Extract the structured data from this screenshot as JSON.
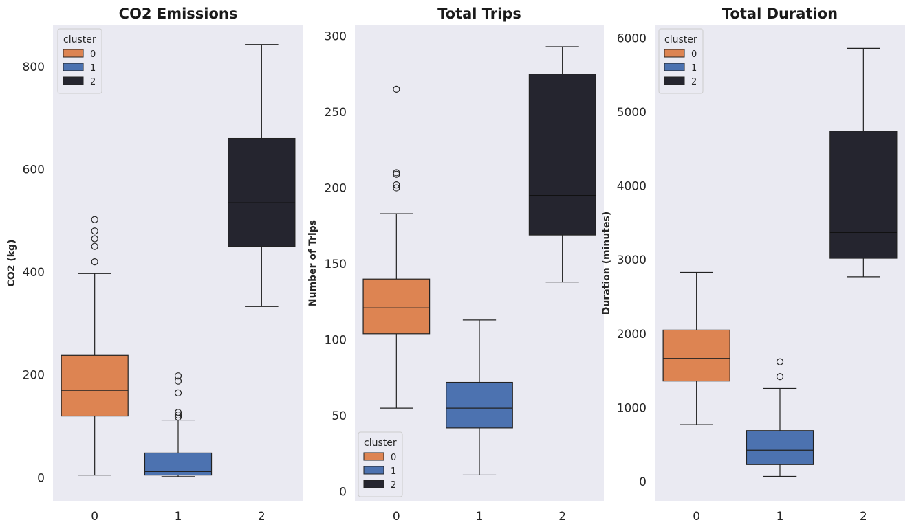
{
  "colors": {
    "background": "#eaeaf2",
    "cluster_0": "#dd8452",
    "cluster_1": "#4c72b0",
    "cluster_2": "#25252f",
    "median_on_dark": "#111111",
    "outline": "#222222"
  },
  "chart_data": [
    {
      "type": "box",
      "title": "CO2 Emissions",
      "xlabel": "",
      "ylabel": "CO2 (kg)",
      "ylim": [
        -45,
        880
      ],
      "yticks": [
        0,
        200,
        400,
        600,
        800
      ],
      "categories": [
        "0",
        "1",
        "2"
      ],
      "grid": false,
      "legend": {
        "title": "cluster",
        "placement": "top-left",
        "entries": [
          "0",
          "1",
          "2"
        ]
      },
      "boxes": [
        {
          "cluster": "0",
          "whisker_low": 5,
          "q1": 120,
          "median": 170,
          "q3": 238,
          "whisker_high": 397,
          "outliers": [
            420,
            450,
            465,
            480,
            502
          ]
        },
        {
          "cluster": "1",
          "whisker_low": 2,
          "q1": 5,
          "median": 12,
          "q3": 48,
          "whisker_high": 112,
          "outliers": [
            118,
            122,
            127,
            165,
            188,
            198
          ]
        },
        {
          "cluster": "2",
          "whisker_low": 333,
          "q1": 450,
          "median": 535,
          "q3": 660,
          "whisker_high": 843,
          "outliers": []
        }
      ]
    },
    {
      "type": "box",
      "title": "Total Trips",
      "xlabel": "",
      "ylabel": "Number of Trips",
      "ylim": [
        -6,
        307
      ],
      "yticks": [
        0,
        50,
        100,
        150,
        200,
        250,
        300
      ],
      "categories": [
        "0",
        "1",
        "2"
      ],
      "grid": false,
      "legend": {
        "title": "cluster",
        "placement": "bottom-left",
        "entries": [
          "0",
          "1",
          "2"
        ]
      },
      "boxes": [
        {
          "cluster": "0",
          "whisker_low": 55,
          "q1": 104,
          "median": 121,
          "q3": 140,
          "whisker_high": 183,
          "outliers": [
            200,
            202,
            209,
            210,
            265
          ]
        },
        {
          "cluster": "1",
          "whisker_low": 11,
          "q1": 42,
          "median": 55,
          "q3": 72,
          "whisker_high": 113,
          "outliers": []
        },
        {
          "cluster": "2",
          "whisker_low": 138,
          "q1": 169,
          "median": 195,
          "q3": 275,
          "whisker_high": 293,
          "outliers": []
        }
      ]
    },
    {
      "type": "box",
      "title": "Total Duration",
      "xlabel": "",
      "ylabel": "Duration (minutes)",
      "ylim": [
        -260,
        6170
      ],
      "yticks": [
        0,
        1000,
        2000,
        3000,
        4000,
        5000,
        6000
      ],
      "categories": [
        "0",
        "1",
        "2"
      ],
      "grid": false,
      "legend": {
        "title": "cluster",
        "placement": "top-left",
        "entries": [
          "0",
          "1",
          "2"
        ]
      },
      "boxes": [
        {
          "cluster": "0",
          "whisker_low": 770,
          "q1": 1360,
          "median": 1665,
          "q3": 2050,
          "whisker_high": 2830,
          "outliers": []
        },
        {
          "cluster": "1",
          "whisker_low": 70,
          "q1": 230,
          "median": 425,
          "q3": 690,
          "whisker_high": 1260,
          "outliers": [
            1420,
            1620
          ]
        },
        {
          "cluster": "2",
          "whisker_low": 2770,
          "q1": 3020,
          "median": 3370,
          "q3": 4740,
          "whisker_high": 5860,
          "outliers": []
        }
      ]
    }
  ]
}
